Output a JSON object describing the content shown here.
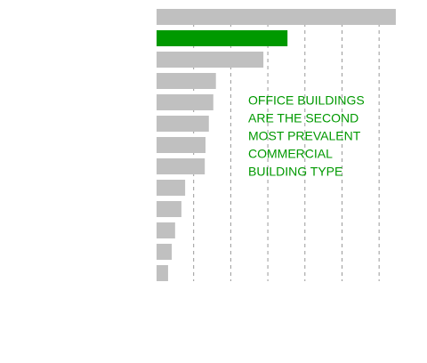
{
  "chart_data": {
    "type": "barh",
    "categories": [
      null,
      null,
      null,
      null,
      null,
      null,
      null,
      null,
      null,
      null,
      null,
      null,
      null
    ],
    "values": [
      6.45,
      3.53,
      2.88,
      1.6,
      1.53,
      1.41,
      1.32,
      1.3,
      0.77,
      0.67,
      0.5,
      0.41,
      0.31
    ],
    "colors": [
      "#c0c0c0",
      "#009900",
      "#c0c0c0",
      "#c0c0c0",
      "#c0c0c0",
      "#c0c0c0",
      "#c0c0c0",
      "#c0c0c0",
      "#c0c0c0",
      "#c0c0c0",
      "#c0c0c0",
      "#c0c0c0",
      "#c0c0c0"
    ],
    "xlim": [
      0,
      6.5
    ],
    "xticks": [
      1,
      2,
      3,
      4,
      5,
      6
    ],
    "grid": true,
    "annotation": {
      "color": "#009900",
      "lines": [
        "OFFICE BUILDINGS",
        "ARE THE SECOND",
        "MOST PREVALENT",
        "COMMERCIAL",
        "BUILDING TYPE"
      ]
    }
  }
}
